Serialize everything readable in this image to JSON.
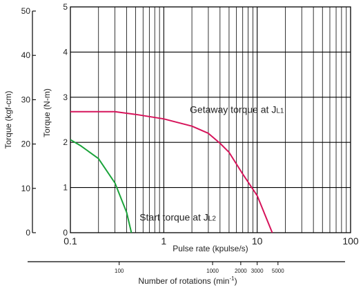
{
  "chart_data": {
    "type": "line",
    "title": "",
    "xlabel": "Pulse rate (kpulse/s)",
    "x_scale": "log",
    "xlim": [
      0.1,
      100
    ],
    "x_ticks": [
      {
        "value": 0.1,
        "label": "0.1"
      },
      {
        "value": 1,
        "label": "1"
      },
      {
        "value": 10,
        "label": "10"
      },
      {
        "value": 100,
        "label": "100"
      }
    ],
    "ylabel_nm": "Torque (N-m)",
    "ylim_nm": [
      0,
      5
    ],
    "y_ticks_nm": [
      "0",
      "1",
      "2",
      "3",
      "4",
      "5"
    ],
    "ylabel_kgf": "Torque (kgf-cm)",
    "ylim_kgf": [
      0,
      50
    ],
    "y_ticks_kgf": [
      "0",
      "10",
      "20",
      "30",
      "40",
      "50"
    ],
    "grid": true,
    "rotation_axis": {
      "label_prefix": "Number of rotations (min",
      "label_sup": "-1",
      "label_suffix": ")",
      "ticks": [
        {
          "label": "100",
          "pulse_rate": 0.333
        },
        {
          "label": "1000",
          "pulse_rate": 3.33
        },
        {
          "label": "2000",
          "pulse_rate": 6.67
        },
        {
          "label": "3000",
          "pulse_rate": 10
        },
        {
          "label": "5000",
          "pulse_rate": 16.7
        }
      ]
    },
    "series": [
      {
        "id": "getaway",
        "label_main": "Getaway torque at J",
        "label_sub": "L1",
        "color": "#d6135a",
        "label_at": [
          1.9,
          2.65
        ],
        "points": [
          [
            0.1,
            2.68
          ],
          [
            0.3,
            2.68
          ],
          [
            0.5,
            2.62
          ],
          [
            1.0,
            2.52
          ],
          [
            2.0,
            2.36
          ],
          [
            3.0,
            2.2
          ],
          [
            4.0,
            1.98
          ],
          [
            5.0,
            1.78
          ],
          [
            7.0,
            1.3
          ],
          [
            10.0,
            0.82
          ],
          [
            14.5,
            0.0
          ]
        ]
      },
      {
        "id": "start",
        "label_main": "Start torque at J",
        "label_sub": "L2",
        "color": "#1aa33a",
        "label_at": [
          0.55,
          0.27
        ],
        "points": [
          [
            0.1,
            2.06
          ],
          [
            0.13,
            1.92
          ],
          [
            0.2,
            1.64
          ],
          [
            0.3,
            1.1
          ],
          [
            0.4,
            0.45
          ],
          [
            0.45,
            0.0
          ]
        ]
      }
    ]
  }
}
